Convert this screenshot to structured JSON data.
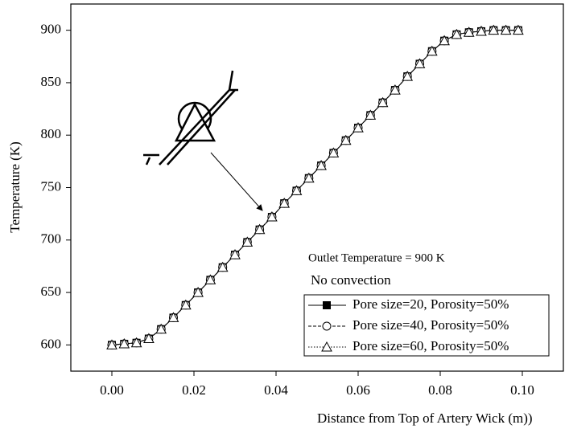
{
  "chart_data": {
    "type": "line",
    "xlabel": "Distance from Top of Artery Wick (m))",
    "ylabel": "Temperature (K)",
    "annotations": [
      "Outlet Temperature = 900 K",
      "No convection"
    ],
    "x": [
      0.0,
      0.003,
      0.006,
      0.009,
      0.012,
      0.015,
      0.018,
      0.021,
      0.024,
      0.027,
      0.03,
      0.033,
      0.036,
      0.039,
      0.042,
      0.045,
      0.048,
      0.051,
      0.054,
      0.057,
      0.06,
      0.063,
      0.066,
      0.069,
      0.072,
      0.075,
      0.078,
      0.081,
      0.084,
      0.087,
      0.09,
      0.093,
      0.096,
      0.099
    ],
    "series": [
      {
        "name": "Pore size=20, Porosity=50%",
        "color": "#000000",
        "marker": "square",
        "dash": "solid",
        "values": [
          600,
          601,
          602,
          606,
          615,
          626,
          638,
          650,
          662,
          674,
          686,
          698,
          710,
          722,
          735,
          747,
          759,
          771,
          783,
          795,
          807,
          819,
          831,
          843,
          856,
          868,
          880,
          890,
          896,
          898,
          899,
          900,
          900,
          900
        ]
      },
      {
        "name": "Pore size=40, Porosity=50%",
        "color": "#000000",
        "marker": "circle",
        "dash": "dashed",
        "values": [
          600,
          601,
          602,
          606,
          615,
          626,
          638,
          650,
          662,
          674,
          686,
          698,
          710,
          722,
          735,
          747,
          759,
          771,
          783,
          795,
          807,
          819,
          831,
          843,
          856,
          868,
          880,
          890,
          896,
          898,
          899,
          900,
          900,
          900
        ]
      },
      {
        "name": "Pore size=60, Porosity=50%",
        "color": "#000000",
        "marker": "triangle",
        "dash": "dotted",
        "values": [
          600,
          601,
          602,
          606,
          615,
          626,
          638,
          650,
          662,
          674,
          686,
          698,
          710,
          722,
          735,
          747,
          759,
          771,
          783,
          795,
          807,
          819,
          831,
          843,
          856,
          868,
          880,
          890,
          896,
          898,
          899,
          900,
          900,
          900
        ]
      }
    ],
    "xlim": [
      -0.01,
      0.11
    ],
    "ylim": [
      575,
      925
    ],
    "xticks": [
      {
        "value": 0,
        "label": "0.00"
      },
      {
        "value": 0.02,
        "label": "0.02"
      },
      {
        "value": 0.04,
        "label": "0.04"
      },
      {
        "value": 0.06,
        "label": "0.06"
      },
      {
        "value": 0.08,
        "label": "0.08"
      },
      {
        "value": 0.1,
        "label": "0.10"
      }
    ],
    "yticks": [
      600,
      650,
      700,
      750,
      800,
      850,
      900
    ],
    "grid": false
  }
}
